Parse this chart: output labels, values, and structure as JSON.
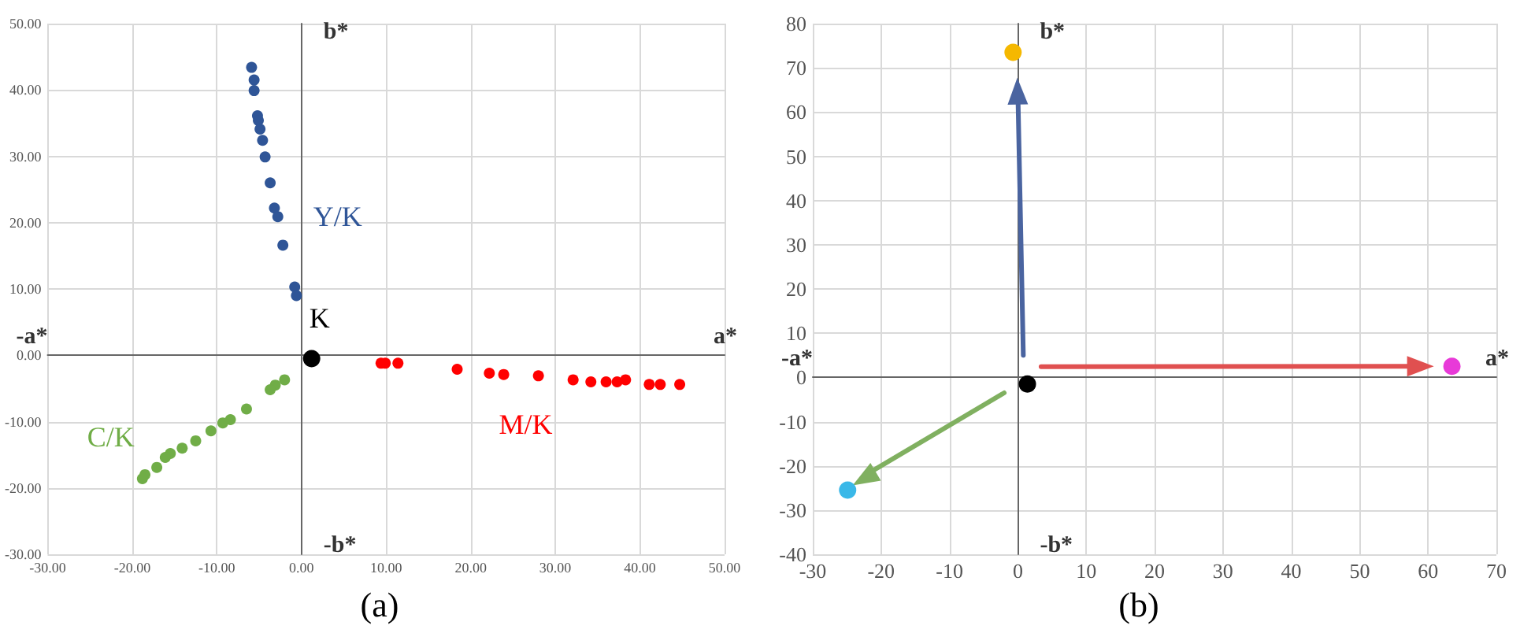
{
  "chart_data": [
    {
      "type": "scatter",
      "title": "(a)",
      "xlabel": "a*",
      "ylabel": "b*",
      "annotations": [
        "-a*",
        "-b*"
      ],
      "xlim": [
        -30,
        50
      ],
      "ylim": [
        -30,
        50
      ],
      "xticks": [
        {
          "value": -30,
          "label": "-30.00"
        },
        {
          "value": -20,
          "label": "-20.00"
        },
        {
          "value": -10,
          "label": "-10.00"
        },
        {
          "value": 0,
          "label": "0.00"
        },
        {
          "value": 10,
          "label": "10.00"
        },
        {
          "value": 20,
          "label": "20.00"
        },
        {
          "value": 30,
          "label": "30.00"
        },
        {
          "value": 40,
          "label": "40.00"
        },
        {
          "value": 50,
          "label": "50.00"
        }
      ],
      "yticks": [
        {
          "value": -30,
          "label": "-30.00"
        },
        {
          "value": -20,
          "label": "-20.00"
        },
        {
          "value": -10,
          "label": "-10.00"
        },
        {
          "value": 0,
          "label": "0.00"
        },
        {
          "value": 10,
          "label": "10.00"
        },
        {
          "value": 20,
          "label": "20.00"
        },
        {
          "value": 30,
          "label": "30.00"
        },
        {
          "value": 40,
          "label": "40.00"
        },
        {
          "value": 50,
          "label": "50.00"
        }
      ],
      "grid": true,
      "marker": "circle",
      "series": [
        {
          "name": "Y/K",
          "color": "#2f5597",
          "x": [
            -5.9,
            -5.6,
            -5.6,
            -5.2,
            -5.1,
            -4.9,
            -4.6,
            -4.3,
            -3.7,
            -3.2,
            -2.8,
            -2.2,
            -0.8,
            -0.6
          ],
          "values": [
            43.4,
            41.5,
            39.9,
            36.1,
            35.4,
            34.1,
            32.4,
            29.9,
            26,
            22.2,
            20.9,
            16.6,
            10.3,
            9
          ]
        },
        {
          "name": "C/K",
          "color": "#70ad47",
          "x": [
            -2,
            -3.1,
            -3.7,
            -6.5,
            -8.4,
            -9.3,
            -10.7,
            -12.5,
            -14.1,
            -15.5,
            -16.1,
            -17.1,
            -18.5,
            -18.8
          ],
          "values": [
            -3.7,
            -4.5,
            -5.2,
            -8.1,
            -9.7,
            -10.2,
            -11.4,
            -12.9,
            -14,
            -14.8,
            -15.4,
            -16.9,
            -18,
            -18.6
          ]
        },
        {
          "name": "M/K",
          "color": "#ff0000",
          "x": [
            9.4,
            9.9,
            11.4,
            18.4,
            22.2,
            23.9,
            28,
            32.1,
            34.2,
            36,
            37.3,
            38.3,
            41.1,
            42.4,
            44.7
          ],
          "values": [
            -1.2,
            -1.2,
            -1.2,
            -2.1,
            -2.7,
            -2.9,
            -3.1,
            -3.7,
            -4,
            -4,
            -4,
            -3.7,
            -4.4,
            -4.4,
            -4.4
          ]
        },
        {
          "name": "K",
          "color": "#000000",
          "x": [
            1.2
          ],
          "values": [
            -0.5
          ]
        }
      ]
    },
    {
      "type": "scatter",
      "title": "(b)",
      "xlabel": "a*",
      "ylabel": "b*",
      "annotations": [
        "-a*",
        "-b*"
      ],
      "xlim": [
        -30,
        70
      ],
      "ylim": [
        -40,
        80
      ],
      "xticks": [
        -30,
        -20,
        -10,
        0,
        10,
        20,
        30,
        40,
        50,
        60,
        70
      ],
      "yticks": [
        -40,
        -30,
        -20,
        -10,
        0,
        10,
        20,
        30,
        40,
        50,
        60,
        70,
        80
      ],
      "grid": true,
      "marker": "circle",
      "series": [
        {
          "type": "line",
          "marker": "triangle",
          "color": "#4a64a0",
          "x": [
            0.8,
            0
          ],
          "values": [
            5,
            64.7
          ]
        },
        {
          "type": "line",
          "marker": "triangle",
          "color": "#e05050",
          "x": [
            3.4,
            58.9
          ],
          "values": [
            2.4,
            2.5
          ]
        },
        {
          "type": "line",
          "marker": "triangle",
          "color": "#80b060",
          "x": [
            -2,
            -22.1
          ],
          "values": [
            -3.5,
            -21.9
          ]
        },
        {
          "colors": [
            "#f5b800",
            "#e83ad8",
            "#3ab8e8",
            "#000000"
          ],
          "x": [
            -0.7,
            63.5,
            -24.9,
            1.4
          ],
          "values": [
            73.5,
            2.5,
            -25.5,
            -1.5
          ]
        }
      ]
    }
  ]
}
